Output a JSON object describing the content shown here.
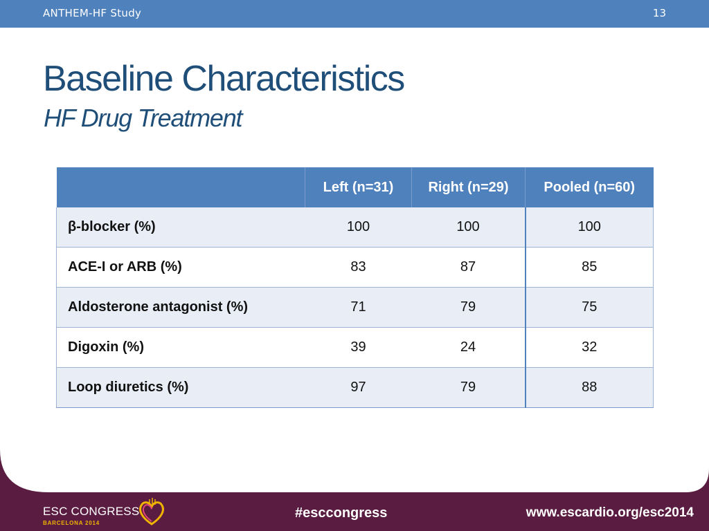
{
  "header": {
    "study": "ANTHEM-HF Study",
    "slide_number": "13"
  },
  "title": "Baseline Characteristics",
  "subtitle": "HF Drug Treatment",
  "table": {
    "columns": [
      "",
      "Left (n=31)",
      "Right (n=29)",
      "Pooled (n=60)"
    ],
    "rows": [
      {
        "label": "β-blocker (%)",
        "left": "100",
        "right": "100",
        "pooled": "100"
      },
      {
        "label": "ACE-I or ARB (%)",
        "left": "83",
        "right": "87",
        "pooled": "85"
      },
      {
        "label": "Aldosterone antagonist (%)",
        "left": "71",
        "right": "79",
        "pooled": "75"
      },
      {
        "label": "Digoxin (%)",
        "left": "39",
        "right": "24",
        "pooled": "32"
      },
      {
        "label": "Loop diuretics (%)",
        "left": "97",
        "right": "79",
        "pooled": "88"
      }
    ]
  },
  "footer": {
    "logo_name": "ESC CONGRESS",
    "logo_city": "BARCELONA 2014",
    "hashtag": "#esccongress",
    "url": "www.escardio.org/esc2014"
  },
  "colors": {
    "accent": "#4f81bd",
    "title": "#1f4e79",
    "footer": "#5a1c40",
    "logo_gold": "#f0b400"
  }
}
